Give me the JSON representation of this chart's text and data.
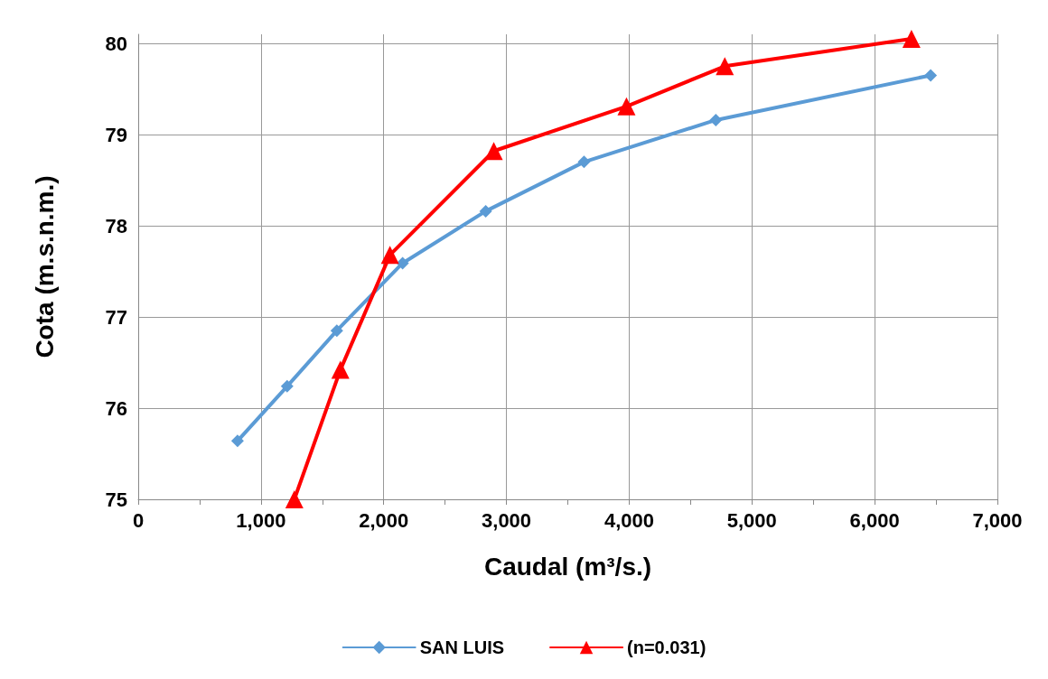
{
  "chart_data": {
    "type": "line",
    "xlabel": "Caudal (m³/s.)",
    "ylabel": "Cota (m.s.n.m.)",
    "xlim": [
      0,
      7000
    ],
    "xticks": [
      0,
      {
        "value": 1000,
        "label": "1,000"
      },
      {
        "value": 2000,
        "label": "2,000"
      },
      {
        "value": 3000,
        "label": "3,000"
      },
      {
        "value": 4000,
        "label": "4,000"
      },
      {
        "value": 5000,
        "label": "5,000"
      },
      {
        "value": 6000,
        "label": "6,000"
      },
      {
        "value": 7000,
        "label": "7,000"
      }
    ],
    "ylim": [
      75,
      80.1
    ],
    "yticks": [
      75,
      76,
      77,
      78,
      79,
      80
    ],
    "grid": true,
    "legend": "bottom",
    "line_style": "solid",
    "series": [
      {
        "name": "SAN LUIS",
        "color": "#5b9bd5",
        "marker": "diamond",
        "x": [
          809,
          1213,
          1618,
          2154,
          2831,
          3632,
          4706,
          6456
        ],
        "values": [
          75.64,
          76.24,
          76.85,
          77.59,
          78.16,
          78.7,
          79.16,
          79.65
        ]
      },
      {
        "name": "(n=0.031)",
        "color": "#ff0000",
        "marker": "triangle",
        "x": [
          1272,
          1647,
          2051,
          2897,
          3978,
          4779,
          6300
        ],
        "values": [
          75.0,
          76.42,
          77.68,
          78.82,
          79.31,
          79.75,
          80.05
        ]
      }
    ]
  }
}
